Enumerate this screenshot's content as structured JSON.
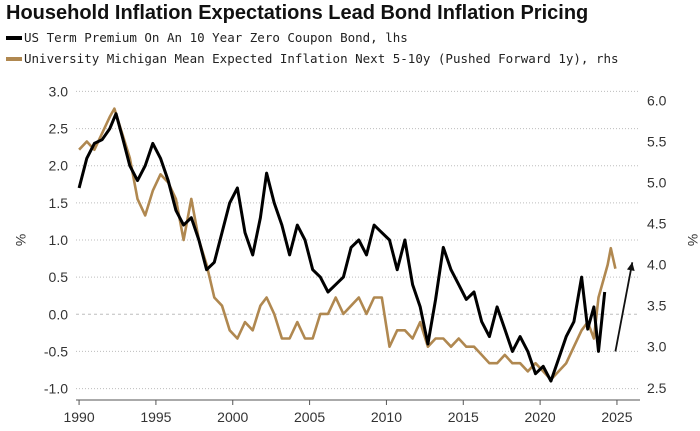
{
  "title": "Household Inflation Expectations Lead Bond Inflation Pricing",
  "chart_data": {
    "type": "line",
    "title": "Household Inflation Expectations Lead Bond Inflation Pricing",
    "legend_position": "top-left",
    "grid": true,
    "x_ticks": [
      "1990",
      "1995",
      "2000",
      "2005",
      "2010",
      "2015",
      "2020",
      "2025"
    ],
    "xlim": [
      1989.8,
      2026.5
    ],
    "left_axis": {
      "label": "%",
      "ylim": [
        -1.1,
        3.1
      ],
      "ticks": [
        "3.0",
        "2.5",
        "2.0",
        "1.5",
        "1.0",
        "0.5",
        "0.0",
        "-0.5",
        "-1.0"
      ]
    },
    "right_axis": {
      "label": "%",
      "ylim": [
        2.4,
        6.2
      ],
      "ticks": [
        "6.0",
        "5.5",
        "5.0",
        "4.5",
        "4.0",
        "3.5",
        "3.0",
        "2.5"
      ]
    },
    "series": [
      {
        "name": "US Term Premium On An 10 Year Zero Coupon Bond, lhs",
        "color": "#000000",
        "axis": "left",
        "points": [
          [
            1990.0,
            1.7
          ],
          [
            1990.5,
            2.1
          ],
          [
            1991.0,
            2.3
          ],
          [
            1991.5,
            2.35
          ],
          [
            1992.0,
            2.5
          ],
          [
            1992.4,
            2.7
          ],
          [
            1992.8,
            2.4
          ],
          [
            1993.3,
            2.0
          ],
          [
            1993.8,
            1.8
          ],
          [
            1994.3,
            2.0
          ],
          [
            1994.8,
            2.3
          ],
          [
            1995.3,
            2.1
          ],
          [
            1995.8,
            1.8
          ],
          [
            1996.3,
            1.4
          ],
          [
            1996.8,
            1.2
          ],
          [
            1997.3,
            1.3
          ],
          [
            1997.8,
            1.0
          ],
          [
            1998.3,
            0.6
          ],
          [
            1998.8,
            0.7
          ],
          [
            1999.3,
            1.1
          ],
          [
            1999.8,
            1.5
          ],
          [
            2000.3,
            1.7
          ],
          [
            2000.8,
            1.1
          ],
          [
            2001.3,
            0.8
          ],
          [
            2001.8,
            1.3
          ],
          [
            2002.2,
            1.9
          ],
          [
            2002.7,
            1.5
          ],
          [
            2003.2,
            1.2
          ],
          [
            2003.7,
            0.8
          ],
          [
            2004.2,
            1.2
          ],
          [
            2004.7,
            1.0
          ],
          [
            2005.2,
            0.6
          ],
          [
            2005.7,
            0.5
          ],
          [
            2006.2,
            0.3
          ],
          [
            2006.7,
            0.4
          ],
          [
            2007.2,
            0.5
          ],
          [
            2007.7,
            0.9
          ],
          [
            2008.2,
            1.0
          ],
          [
            2008.7,
            0.8
          ],
          [
            2009.2,
            1.2
          ],
          [
            2009.7,
            1.1
          ],
          [
            2010.2,
            1.0
          ],
          [
            2010.7,
            0.6
          ],
          [
            2011.2,
            1.0
          ],
          [
            2011.7,
            0.4
          ],
          [
            2012.2,
            0.1
          ],
          [
            2012.7,
            -0.4
          ],
          [
            2013.2,
            0.2
          ],
          [
            2013.7,
            0.9
          ],
          [
            2014.2,
            0.6
          ],
          [
            2014.7,
            0.4
          ],
          [
            2015.2,
            0.2
          ],
          [
            2015.7,
            0.3
          ],
          [
            2016.2,
            -0.1
          ],
          [
            2016.7,
            -0.3
          ],
          [
            2017.2,
            0.1
          ],
          [
            2017.7,
            -0.2
          ],
          [
            2018.2,
            -0.5
          ],
          [
            2018.7,
            -0.3
          ],
          [
            2019.2,
            -0.5
          ],
          [
            2019.7,
            -0.8
          ],
          [
            2020.2,
            -0.7
          ],
          [
            2020.7,
            -0.9
          ],
          [
            2021.2,
            -0.6
          ],
          [
            2021.7,
            -0.3
          ],
          [
            2022.2,
            -0.1
          ],
          [
            2022.7,
            0.5
          ],
          [
            2023.1,
            -0.2
          ],
          [
            2023.5,
            0.1
          ],
          [
            2023.8,
            -0.5
          ],
          [
            2024.2,
            0.3
          ]
        ]
      },
      {
        "name": "University Michigan Mean Expected Inflation Next 5-10y (Pushed Forward 1y), rhs",
        "color": "#b08850",
        "axis": "right",
        "points": [
          [
            1990.0,
            5.4
          ],
          [
            1990.5,
            5.5
          ],
          [
            1991.0,
            5.4
          ],
          [
            1991.5,
            5.6
          ],
          [
            1992.0,
            5.8
          ],
          [
            1992.3,
            5.9
          ],
          [
            1992.8,
            5.6
          ],
          [
            1993.3,
            5.3
          ],
          [
            1993.8,
            4.8
          ],
          [
            1994.3,
            4.6
          ],
          [
            1994.8,
            4.9
          ],
          [
            1995.3,
            5.1
          ],
          [
            1995.8,
            5.0
          ],
          [
            1996.3,
            4.8
          ],
          [
            1996.8,
            4.3
          ],
          [
            1997.3,
            4.8
          ],
          [
            1997.8,
            4.3
          ],
          [
            1998.3,
            4.0
          ],
          [
            1998.8,
            3.6
          ],
          [
            1999.3,
            3.5
          ],
          [
            1999.8,
            3.2
          ],
          [
            2000.3,
            3.1
          ],
          [
            2000.8,
            3.3
          ],
          [
            2001.3,
            3.2
          ],
          [
            2001.8,
            3.5
          ],
          [
            2002.2,
            3.6
          ],
          [
            2002.7,
            3.4
          ],
          [
            2003.2,
            3.1
          ],
          [
            2003.7,
            3.1
          ],
          [
            2004.2,
            3.3
          ],
          [
            2004.7,
            3.1
          ],
          [
            2005.2,
            3.1
          ],
          [
            2005.7,
            3.4
          ],
          [
            2006.2,
            3.4
          ],
          [
            2006.7,
            3.6
          ],
          [
            2007.2,
            3.4
          ],
          [
            2007.7,
            3.5
          ],
          [
            2008.2,
            3.6
          ],
          [
            2008.7,
            3.4
          ],
          [
            2009.2,
            3.6
          ],
          [
            2009.7,
            3.6
          ],
          [
            2010.2,
            3.0
          ],
          [
            2010.7,
            3.2
          ],
          [
            2011.2,
            3.2
          ],
          [
            2011.7,
            3.1
          ],
          [
            2012.2,
            3.3
          ],
          [
            2012.7,
            3.0
          ],
          [
            2013.2,
            3.1
          ],
          [
            2013.7,
            3.1
          ],
          [
            2014.2,
            3.0
          ],
          [
            2014.7,
            3.1
          ],
          [
            2015.2,
            3.0
          ],
          [
            2015.7,
            3.0
          ],
          [
            2016.2,
            2.9
          ],
          [
            2016.7,
            2.8
          ],
          [
            2017.2,
            2.8
          ],
          [
            2017.7,
            2.9
          ],
          [
            2018.2,
            2.8
          ],
          [
            2018.7,
            2.8
          ],
          [
            2019.2,
            2.7
          ],
          [
            2019.7,
            2.8
          ],
          [
            2020.2,
            2.7
          ],
          [
            2020.7,
            2.6
          ],
          [
            2021.2,
            2.7
          ],
          [
            2021.7,
            2.8
          ],
          [
            2022.2,
            3.0
          ],
          [
            2022.7,
            3.2
          ],
          [
            2023.1,
            3.3
          ],
          [
            2023.5,
            3.1
          ],
          [
            2023.8,
            3.6
          ],
          [
            2024.1,
            3.8
          ],
          [
            2024.4,
            4.0
          ],
          [
            2024.6,
            4.2
          ],
          [
            2024.9,
            3.95
          ]
        ]
      }
    ],
    "annotations": [
      {
        "type": "arrow",
        "from": [
          2024.9,
          -0.5
        ],
        "to": [
          2026.0,
          0.7
        ],
        "axis": "left"
      }
    ]
  }
}
